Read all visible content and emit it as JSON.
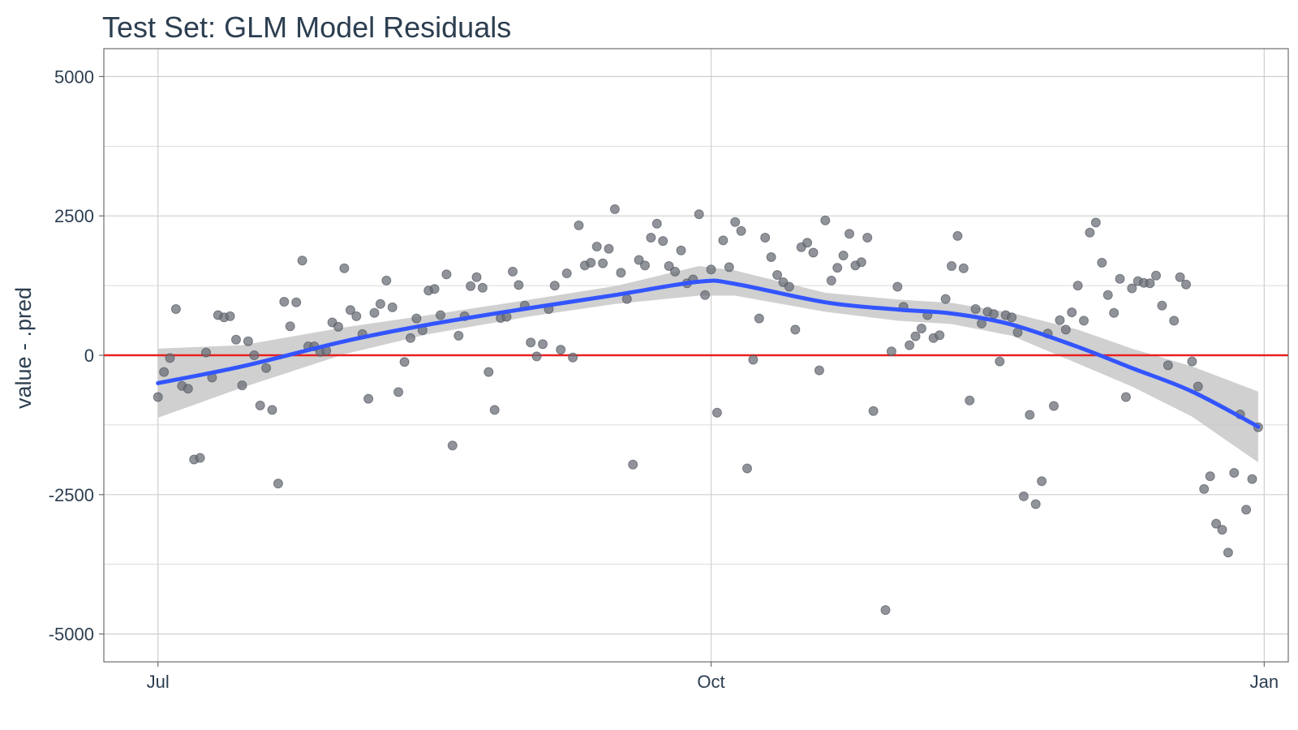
{
  "chart_data": {
    "type": "scatter",
    "title": "Test Set: GLM Model Residuals",
    "xlabel": "",
    "ylabel": "value - .pred",
    "x_ticks": [
      {
        "label": "Jul",
        "date": "2024-07-01"
      },
      {
        "label": "Oct",
        "date": "2024-10-01"
      },
      {
        "label": "Jan",
        "date": "2025-01-01"
      }
    ],
    "xlim": [
      "2024-06-22",
      "2025-01-05"
    ],
    "y_ticks": [
      {
        "label": "5000",
        "value": 5000
      },
      {
        "label": "2500",
        "value": 2500
      },
      {
        "label": "0",
        "value": 0
      },
      {
        "label": "-2500",
        "value": -2500
      },
      {
        "label": "-5000",
        "value": -5000
      }
    ],
    "ylim": [
      -5500,
      5500
    ],
    "grid": true,
    "reference_line": {
      "y": 0,
      "color": "#e8201f"
    },
    "colors": {
      "points": "#6b6f78",
      "smooth_line": "#3355ff",
      "confidence_band": "#c8c8c8",
      "text": "#2c3e50"
    },
    "points": [
      {
        "x": "2024-07-01",
        "y": -750
      },
      {
        "x": "2024-07-02",
        "y": -300
      },
      {
        "x": "2024-07-03",
        "y": -50
      },
      {
        "x": "2024-07-04",
        "y": 830
      },
      {
        "x": "2024-07-05",
        "y": -550
      },
      {
        "x": "2024-07-06",
        "y": -600
      },
      {
        "x": "2024-07-07",
        "y": -1870
      },
      {
        "x": "2024-07-08",
        "y": -1840
      },
      {
        "x": "2024-07-09",
        "y": 50
      },
      {
        "x": "2024-07-10",
        "y": -400
      },
      {
        "x": "2024-07-11",
        "y": 720
      },
      {
        "x": "2024-07-12",
        "y": 680
      },
      {
        "x": "2024-07-13",
        "y": 700
      },
      {
        "x": "2024-07-14",
        "y": 280
      },
      {
        "x": "2024-07-15",
        "y": -540
      },
      {
        "x": "2024-07-16",
        "y": 250
      },
      {
        "x": "2024-07-17",
        "y": 0
      },
      {
        "x": "2024-07-18",
        "y": -900
      },
      {
        "x": "2024-07-19",
        "y": -230
      },
      {
        "x": "2024-07-20",
        "y": -980
      },
      {
        "x": "2024-07-21",
        "y": -2300
      },
      {
        "x": "2024-07-22",
        "y": 960
      },
      {
        "x": "2024-07-23",
        "y": 520
      },
      {
        "x": "2024-07-24",
        "y": 950
      },
      {
        "x": "2024-07-25",
        "y": 1700
      },
      {
        "x": "2024-07-26",
        "y": 160
      },
      {
        "x": "2024-07-27",
        "y": 160
      },
      {
        "x": "2024-07-28",
        "y": 60
      },
      {
        "x": "2024-07-29",
        "y": 80
      },
      {
        "x": "2024-07-30",
        "y": 590
      },
      {
        "x": "2024-07-31",
        "y": 510
      },
      {
        "x": "2024-08-01",
        "y": 1560
      },
      {
        "x": "2024-08-02",
        "y": 810
      },
      {
        "x": "2024-08-03",
        "y": 700
      },
      {
        "x": "2024-08-04",
        "y": 380
      },
      {
        "x": "2024-08-05",
        "y": -780
      },
      {
        "x": "2024-08-06",
        "y": 760
      },
      {
        "x": "2024-08-07",
        "y": 920
      },
      {
        "x": "2024-08-08",
        "y": 1340
      },
      {
        "x": "2024-08-09",
        "y": 860
      },
      {
        "x": "2024-08-10",
        "y": -660
      },
      {
        "x": "2024-08-11",
        "y": -120
      },
      {
        "x": "2024-08-12",
        "y": 310
      },
      {
        "x": "2024-08-13",
        "y": 660
      },
      {
        "x": "2024-08-14",
        "y": 450
      },
      {
        "x": "2024-08-15",
        "y": 1160
      },
      {
        "x": "2024-08-16",
        "y": 1190
      },
      {
        "x": "2024-08-17",
        "y": 720
      },
      {
        "x": "2024-08-18",
        "y": 1450
      },
      {
        "x": "2024-08-19",
        "y": -1620
      },
      {
        "x": "2024-08-20",
        "y": 350
      },
      {
        "x": "2024-08-21",
        "y": 700
      },
      {
        "x": "2024-08-22",
        "y": 1240
      },
      {
        "x": "2024-08-23",
        "y": 1400
      },
      {
        "x": "2024-08-24",
        "y": 1210
      },
      {
        "x": "2024-08-25",
        "y": -300
      },
      {
        "x": "2024-08-26",
        "y": -980
      },
      {
        "x": "2024-08-27",
        "y": 670
      },
      {
        "x": "2024-08-28",
        "y": 690
      },
      {
        "x": "2024-08-29",
        "y": 1500
      },
      {
        "x": "2024-08-30",
        "y": 1260
      },
      {
        "x": "2024-08-31",
        "y": 890
      },
      {
        "x": "2024-09-01",
        "y": 230
      },
      {
        "x": "2024-09-02",
        "y": -20
      },
      {
        "x": "2024-09-03",
        "y": 200
      },
      {
        "x": "2024-09-04",
        "y": 830
      },
      {
        "x": "2024-09-05",
        "y": 1250
      },
      {
        "x": "2024-09-06",
        "y": 100
      },
      {
        "x": "2024-09-07",
        "y": 1470
      },
      {
        "x": "2024-09-08",
        "y": -40
      },
      {
        "x": "2024-09-09",
        "y": 2330
      },
      {
        "x": "2024-09-10",
        "y": 1610
      },
      {
        "x": "2024-09-11",
        "y": 1660
      },
      {
        "x": "2024-09-12",
        "y": 1950
      },
      {
        "x": "2024-09-13",
        "y": 1650
      },
      {
        "x": "2024-09-14",
        "y": 1910
      },
      {
        "x": "2024-09-15",
        "y": 2620
      },
      {
        "x": "2024-09-16",
        "y": 1480
      },
      {
        "x": "2024-09-17",
        "y": 1010
      },
      {
        "x": "2024-09-18",
        "y": -1960
      },
      {
        "x": "2024-09-19",
        "y": 1710
      },
      {
        "x": "2024-09-20",
        "y": 1610
      },
      {
        "x": "2024-09-21",
        "y": 2110
      },
      {
        "x": "2024-09-22",
        "y": 2360
      },
      {
        "x": "2024-09-23",
        "y": 2050
      },
      {
        "x": "2024-09-24",
        "y": 1600
      },
      {
        "x": "2024-09-25",
        "y": 1500
      },
      {
        "x": "2024-09-26",
        "y": 1880
      },
      {
        "x": "2024-09-27",
        "y": 1290
      },
      {
        "x": "2024-09-28",
        "y": 1360
      },
      {
        "x": "2024-09-29",
        "y": 2530
      },
      {
        "x": "2024-09-30",
        "y": 1080
      },
      {
        "x": "2024-10-01",
        "y": 1540
      },
      {
        "x": "2024-10-02",
        "y": -1030
      },
      {
        "x": "2024-10-03",
        "y": 2060
      },
      {
        "x": "2024-10-04",
        "y": 1580
      },
      {
        "x": "2024-10-05",
        "y": 2390
      },
      {
        "x": "2024-10-06",
        "y": 2230
      },
      {
        "x": "2024-10-07",
        "y": -2030
      },
      {
        "x": "2024-10-08",
        "y": -80
      },
      {
        "x": "2024-10-09",
        "y": 660
      },
      {
        "x": "2024-10-10",
        "y": 2110
      },
      {
        "x": "2024-10-11",
        "y": 1760
      },
      {
        "x": "2024-10-12",
        "y": 1440
      },
      {
        "x": "2024-10-13",
        "y": 1310
      },
      {
        "x": "2024-10-14",
        "y": 1230
      },
      {
        "x": "2024-10-15",
        "y": 460
      },
      {
        "x": "2024-10-16",
        "y": 1940
      },
      {
        "x": "2024-10-17",
        "y": 2020
      },
      {
        "x": "2024-10-18",
        "y": 1840
      },
      {
        "x": "2024-10-19",
        "y": -270
      },
      {
        "x": "2024-10-20",
        "y": 2420
      },
      {
        "x": "2024-10-21",
        "y": 1340
      },
      {
        "x": "2024-10-22",
        "y": 1570
      },
      {
        "x": "2024-10-23",
        "y": 1790
      },
      {
        "x": "2024-10-24",
        "y": 2180
      },
      {
        "x": "2024-10-25",
        "y": 1610
      },
      {
        "x": "2024-10-26",
        "y": 1670
      },
      {
        "x": "2024-10-27",
        "y": 2110
      },
      {
        "x": "2024-10-28",
        "y": -1000
      },
      {
        "x": "2024-10-30",
        "y": -4570
      },
      {
        "x": "2024-10-31",
        "y": 70
      },
      {
        "x": "2024-11-01",
        "y": 1230
      },
      {
        "x": "2024-11-02",
        "y": 870
      },
      {
        "x": "2024-11-03",
        "y": 180
      },
      {
        "x": "2024-11-04",
        "y": 340
      },
      {
        "x": "2024-11-05",
        "y": 480
      },
      {
        "x": "2024-11-06",
        "y": 720
      },
      {
        "x": "2024-11-07",
        "y": 310
      },
      {
        "x": "2024-11-08",
        "y": 360
      },
      {
        "x": "2024-11-09",
        "y": 1010
      },
      {
        "x": "2024-11-10",
        "y": 1600
      },
      {
        "x": "2024-11-11",
        "y": 2140
      },
      {
        "x": "2024-11-12",
        "y": 1560
      },
      {
        "x": "2024-11-13",
        "y": -810
      },
      {
        "x": "2024-11-14",
        "y": 830
      },
      {
        "x": "2024-11-15",
        "y": 570
      },
      {
        "x": "2024-11-16",
        "y": 780
      },
      {
        "x": "2024-11-17",
        "y": 740
      },
      {
        "x": "2024-11-18",
        "y": -110
      },
      {
        "x": "2024-11-19",
        "y": 720
      },
      {
        "x": "2024-11-20",
        "y": 680
      },
      {
        "x": "2024-11-21",
        "y": 410
      },
      {
        "x": "2024-11-22",
        "y": -2530
      },
      {
        "x": "2024-11-23",
        "y": -1070
      },
      {
        "x": "2024-11-24",
        "y": -2670
      },
      {
        "x": "2024-11-25",
        "y": -2260
      },
      {
        "x": "2024-11-26",
        "y": 390
      },
      {
        "x": "2024-11-27",
        "y": -910
      },
      {
        "x": "2024-11-28",
        "y": 630
      },
      {
        "x": "2024-11-29",
        "y": 460
      },
      {
        "x": "2024-11-30",
        "y": 770
      },
      {
        "x": "2024-12-01",
        "y": 1250
      },
      {
        "x": "2024-12-02",
        "y": 620
      },
      {
        "x": "2024-12-03",
        "y": 2200
      },
      {
        "x": "2024-12-04",
        "y": 2380
      },
      {
        "x": "2024-12-05",
        "y": 1660
      },
      {
        "x": "2024-12-06",
        "y": 1080
      },
      {
        "x": "2024-12-07",
        "y": 760
      },
      {
        "x": "2024-12-08",
        "y": 1370
      },
      {
        "x": "2024-12-09",
        "y": -750
      },
      {
        "x": "2024-12-10",
        "y": 1200
      },
      {
        "x": "2024-12-11",
        "y": 1330
      },
      {
        "x": "2024-12-12",
        "y": 1300
      },
      {
        "x": "2024-12-13",
        "y": 1290
      },
      {
        "x": "2024-12-14",
        "y": 1430
      },
      {
        "x": "2024-12-15",
        "y": 890
      },
      {
        "x": "2024-12-16",
        "y": -180
      },
      {
        "x": "2024-12-17",
        "y": 620
      },
      {
        "x": "2024-12-18",
        "y": 1400
      },
      {
        "x": "2024-12-19",
        "y": 1270
      },
      {
        "x": "2024-12-20",
        "y": -110
      },
      {
        "x": "2024-12-21",
        "y": -560
      },
      {
        "x": "2024-12-22",
        "y": -2400
      },
      {
        "x": "2024-12-23",
        "y": -2170
      },
      {
        "x": "2024-12-24",
        "y": -3020
      },
      {
        "x": "2024-12-25",
        "y": -3130
      },
      {
        "x": "2024-12-26",
        "y": -3540
      },
      {
        "x": "2024-12-27",
        "y": -2110
      },
      {
        "x": "2024-12-28",
        "y": -1060
      },
      {
        "x": "2024-12-29",
        "y": -2770
      },
      {
        "x": "2024-12-30",
        "y": -2220
      },
      {
        "x": "2024-12-31",
        "y": -1290
      }
    ],
    "smooth": {
      "x": [
        "2024-07-01",
        "2024-07-15",
        "2024-08-01",
        "2024-08-15",
        "2024-09-01",
        "2024-09-15",
        "2024-09-29",
        "2024-10-05",
        "2024-10-20",
        "2024-11-01",
        "2024-11-10",
        "2024-11-20",
        "2024-12-01",
        "2024-12-10",
        "2024-12-20",
        "2024-12-31"
      ],
      "y": [
        -500,
        -200,
        250,
        550,
        850,
        1080,
        1320,
        1280,
        950,
        820,
        750,
        550,
        150,
        -230,
        -650,
        -1280
      ],
      "lower": [
        -1120,
        -580,
        20,
        380,
        700,
        920,
        1070,
        1070,
        780,
        620,
        560,
        350,
        -150,
        -560,
        -1100,
        -1920
      ],
      "upper": [
        120,
        180,
        500,
        720,
        1000,
        1240,
        1600,
        1520,
        1120,
        1000,
        940,
        760,
        460,
        120,
        -200,
        -650
      ]
    }
  }
}
